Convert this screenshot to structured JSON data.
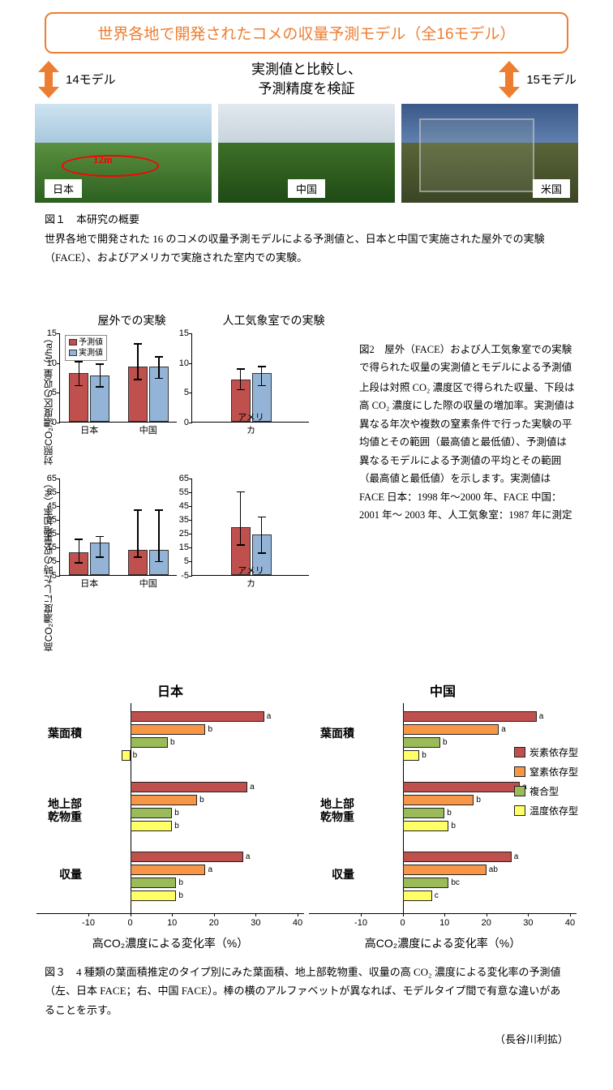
{
  "colors": {
    "orange_accent": "#ed7d31",
    "arrow_fill": "#ed7d31",
    "bar_pred": "#c0504d",
    "bar_obs": "#93b4d7",
    "fig3_red": "#c0504d",
    "fig3_orange": "#f79646",
    "fig3_green": "#9bbb59",
    "fig3_yellow": "#ffff66",
    "sky_japan": "#b8d4e8",
    "ground_japan": "#3a7a2a",
    "sky_china": "#d8e2e8",
    "ground_china": "#2f6020",
    "sky_usa": "#5876a8",
    "ground_usa": "#4a5530"
  },
  "header": {
    "title": "世界各地で開発されたコメの収量予測モデル（全16モデル）"
  },
  "schematic": {
    "left_count": "14モデル",
    "right_count": "15モデル",
    "mid_line1": "実測値と比較し、",
    "mid_line2": "予測精度を検証"
  },
  "photos": {
    "japan": {
      "label": "日本",
      "label_pos": "bottom-left",
      "dist_label": "12m"
    },
    "china": {
      "label": "中国",
      "label_pos": "bottom-center"
    },
    "usa": {
      "label": "米国",
      "label_pos": "bottom-right"
    }
  },
  "fig1_caption_title": "図１　本研究の概要",
  "fig1_caption_body": "世界各地で開発された 16 のコメの収量予測モデルによる予測値と、日本と中国で実施された屋外での実験（FACE）、およびアメリカで実施された室内での実験。",
  "fig2": {
    "col_title_left": "屋外での実験",
    "col_title_right": "人工気象室での実験",
    "legend_pred": "予測値",
    "legend_obs": "実測値",
    "ylab_top": "対照CO₂濃度区の収量（t/ha）",
    "ylab_bot": "高CO₂濃度にした時の収量増加率（%）",
    "top": {
      "yticks": [
        0,
        5,
        10,
        15
      ],
      "ylim": [
        0,
        15
      ],
      "left": {
        "labels": [
          "日本",
          "中国"
        ],
        "pred": [
          8.1,
          9.3
        ],
        "obs": [
          7.7,
          9.3
        ],
        "pred_err": [
          [
            6.2,
            10.2
          ],
          [
            7.2,
            13.2
          ]
        ],
        "obs_err": [
          [
            6.0,
            9.8
          ],
          [
            7.4,
            11.0
          ]
        ]
      },
      "right": {
        "labels": [
          "アメリカ"
        ],
        "pred": [
          7.1
        ],
        "obs": [
          8.2
        ],
        "pred_err": [
          [
            5.5,
            9.0
          ]
        ],
        "obs_err": [
          [
            6.2,
            9.4
          ]
        ]
      }
    },
    "bot": {
      "yticks": [
        -5,
        5,
        15,
        25,
        35,
        45,
        55,
        65
      ],
      "ylim": [
        -5,
        65
      ],
      "left": {
        "labels": [
          "日本",
          "中国"
        ],
        "pred": [
          11,
          13
        ],
        "obs": [
          18,
          13
        ],
        "pred_err": [
          [
            4,
            21
          ],
          [
            8,
            42
          ]
        ],
        "obs_err": [
          [
            8,
            23
          ],
          [
            5,
            42
          ]
        ]
      },
      "right": {
        "labels": [
          "アメリカ"
        ],
        "pred": [
          29
        ],
        "obs": [
          24
        ],
        "pred_err": [
          [
            17,
            55
          ]
        ],
        "obs_err": [
          [
            11,
            37
          ]
        ]
      }
    },
    "caption_title": "図2　屋外（FACE）および人工気象室での実験で得られた収量の実測値とモデルによる予測値",
    "caption_body": "上段は対照 CO₂ 濃度区で得られた収量、下段は高 CO₂ 濃度にした際の収量の増加率。実測値は異なる年次や複数の窒素条件で行った実験の平均値とその範囲（最高値と最低値）、予測値は異なるモデルによる予測値の平均とその範囲（最高値と最低値）を示します。実測値は FACE 日本：1998 年～2000 年、FACE 中国：2001 年～ 2003 年、人工気象室：1987 年に測定"
  },
  "fig3": {
    "title_left": "日本",
    "title_right": "中国",
    "groups": [
      "葉面積",
      "地上部\n乾物重",
      "収量"
    ],
    "legend": [
      {
        "label": "炭素依存型",
        "color": "#c0504d"
      },
      {
        "label": "窒素依存型",
        "color": "#f79646"
      },
      {
        "label": "複合型",
        "color": "#9bbb59"
      },
      {
        "label": "温度依存型",
        "color": "#ffff66"
      }
    ],
    "xticks": [
      -10,
      0,
      10,
      20,
      30,
      40
    ],
    "xlim": [
      -10,
      40
    ],
    "xlabel": "高CO₂濃度による変化率（%）",
    "left": {
      "leaf": {
        "vals": [
          32,
          18,
          9,
          -2
        ],
        "letters": [
          "a",
          "b",
          "b",
          "b"
        ]
      },
      "dry": {
        "vals": [
          28,
          16,
          10,
          10
        ],
        "letters": [
          "a",
          "b",
          "b",
          "b"
        ]
      },
      "yield": {
        "vals": [
          27,
          18,
          11,
          11
        ],
        "letters": [
          "a",
          "a",
          "b",
          "b"
        ]
      }
    },
    "right": {
      "leaf": {
        "vals": [
          32,
          23,
          9,
          4
        ],
        "letters": [
          "a",
          "a",
          "b",
          "b"
        ]
      },
      "dry": {
        "vals": [
          28,
          17,
          10,
          11
        ],
        "letters": [
          "a",
          "b",
          "b",
          "b"
        ]
      },
      "yield": {
        "vals": [
          26,
          20,
          11,
          7
        ],
        "letters": [
          "a",
          "ab",
          "bc",
          "c"
        ]
      }
    }
  },
  "fig3_caption": "図３　4 種類の葉面積推定のタイプ別にみた葉面積、地上部乾物重、収量の高 CO₂ 濃度による変化率の予測値（左、日本 FACE；右、中国 FACE）。棒の横のアルファベットが異なれば、モデルタイプ間で有意な違いがあることを示す。",
  "credit": "（長谷川利拡）"
}
